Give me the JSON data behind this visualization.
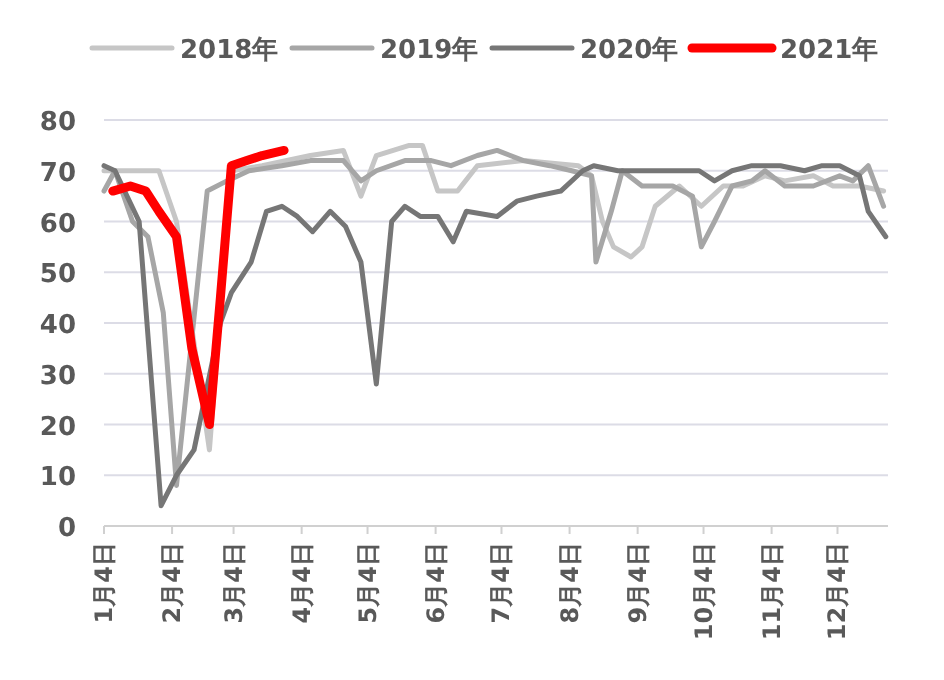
{
  "chart_data": {
    "type": "line",
    "legend": "top",
    "grid": "y",
    "xlim": [
      "--01-04",
      "--12-27"
    ],
    "xticks": [
      {
        "value": "--01-04",
        "label": "1月4日"
      },
      {
        "value": "--02-04",
        "label": "2月4日"
      },
      {
        "value": "--03-04",
        "label": "3月4日"
      },
      {
        "value": "--04-04",
        "label": "4月4日"
      },
      {
        "value": "--05-04",
        "label": "5月4日"
      },
      {
        "value": "--06-04",
        "label": "6月4日"
      },
      {
        "value": "--07-04",
        "label": "7月4日"
      },
      {
        "value": "--08-04",
        "label": "8月4日"
      },
      {
        "value": "--09-04",
        "label": "9月4日"
      },
      {
        "value": "--10-04",
        "label": "10月4日"
      },
      {
        "value": "--11-04",
        "label": "11月4日"
      },
      {
        "value": "--12-04",
        "label": "12月4日"
      }
    ],
    "ylim": [
      0,
      80
    ],
    "yticks": [
      0,
      10,
      20,
      30,
      40,
      50,
      60,
      70,
      80
    ],
    "series": [
      {
        "name": "2018年",
        "color": "#c6c6c6",
        "x": [
          "--01-04",
          "--01-16",
          "--01-29",
          "--02-06",
          "--02-21",
          "--03-03",
          "--03-17",
          "--04-08",
          "--04-23",
          "--05-01",
          "--05-08",
          "--05-23",
          "--05-29",
          "--06-05",
          "--06-14",
          "--06-23",
          "--07-14",
          "--08-08",
          "--08-14",
          "--08-19",
          "--08-24",
          "--09-01",
          "--09-06",
          "--09-12",
          "--09-23",
          "--10-03",
          "--10-13",
          "--10-22",
          "--11-01",
          "--11-10",
          "--11-23",
          "--12-02",
          "--12-14",
          "--12-25"
        ],
        "values": [
          70,
          70,
          70,
          60,
          15,
          70,
          71,
          73,
          74,
          65,
          73,
          75,
          75,
          66,
          66,
          71,
          72,
          71,
          69,
          60,
          55,
          53,
          55,
          63,
          67,
          63,
          67,
          67,
          69,
          68,
          69,
          67,
          67,
          66
        ]
      },
      {
        "name": "2019年",
        "color": "#a6a6a6",
        "x": [
          "--01-04",
          "--01-09",
          "--01-17",
          "--01-24",
          "--01-31",
          "--02-06",
          "--02-20",
          "--03-01",
          "--03-11",
          "--03-26",
          "--04-08",
          "--04-23",
          "--05-01",
          "--05-08",
          "--05-21",
          "--06-02",
          "--06-11",
          "--06-23",
          "--07-02",
          "--07-14",
          "--07-26",
          "--08-05",
          "--08-14",
          "--08-16",
          "--08-23",
          "--08-28",
          "--09-06",
          "--09-20",
          "--09-29",
          "--10-03",
          "--10-09",
          "--10-17",
          "--10-26",
          "--11-01",
          "--11-10",
          "--11-23",
          "--12-05",
          "--12-11",
          "--12-18",
          "--12-25"
        ],
        "values": [
          66,
          70,
          60,
          57,
          42,
          8,
          66,
          68,
          70,
          71,
          72,
          72,
          68,
          70,
          72,
          72,
          71,
          73,
          74,
          72,
          71,
          70,
          69,
          52,
          62,
          70,
          67,
          67,
          65,
          55,
          60,
          67,
          68,
          70,
          67,
          67,
          69,
          68,
          71,
          63
        ]
      },
      {
        "name": "2020年",
        "color": "#767676",
        "x": [
          "--01-04",
          "--01-09",
          "--01-20",
          "--01-30",
          "--02-06",
          "--02-14",
          "--02-26",
          "--03-03",
          "--03-12",
          "--03-19",
          "--03-26",
          "--04-02",
          "--04-09",
          "--04-17",
          "--04-24",
          "--05-01",
          "--05-08",
          "--05-15",
          "--05-21",
          "--05-28",
          "--06-05",
          "--06-12",
          "--06-18",
          "--07-02",
          "--07-11",
          "--07-20",
          "--07-31",
          "--08-10",
          "--08-15",
          "--08-26",
          "--09-14",
          "--09-25",
          "--10-02",
          "--10-09",
          "--10-17",
          "--10-26",
          "--11-08",
          "--11-19",
          "--11-27",
          "--12-05",
          "--12-14",
          "--12-18",
          "--12-26"
        ],
        "values": [
          71,
          70,
          60,
          4,
          10,
          15,
          40,
          46,
          52,
          62,
          63,
          61,
          58,
          62,
          59,
          52,
          28,
          60,
          63,
          61,
          61,
          56,
          62,
          61,
          64,
          65,
          66,
          70,
          71,
          70,
          70,
          70,
          70,
          68,
          70,
          71,
          71,
          70,
          71,
          71,
          69,
          62,
          57
        ]
      },
      {
        "name": "2021年",
        "color": "#ff0000",
        "x": [
          "--01-08",
          "--01-16",
          "--01-23",
          "--01-29",
          "--02-06",
          "--02-13",
          "--02-21",
          "--02-26",
          "--03-03",
          "--03-10",
          "--03-17",
          "--03-27"
        ],
        "values": [
          66,
          67,
          66,
          62,
          57,
          35,
          20,
          45,
          71,
          72,
          73,
          74
        ]
      }
    ]
  }
}
